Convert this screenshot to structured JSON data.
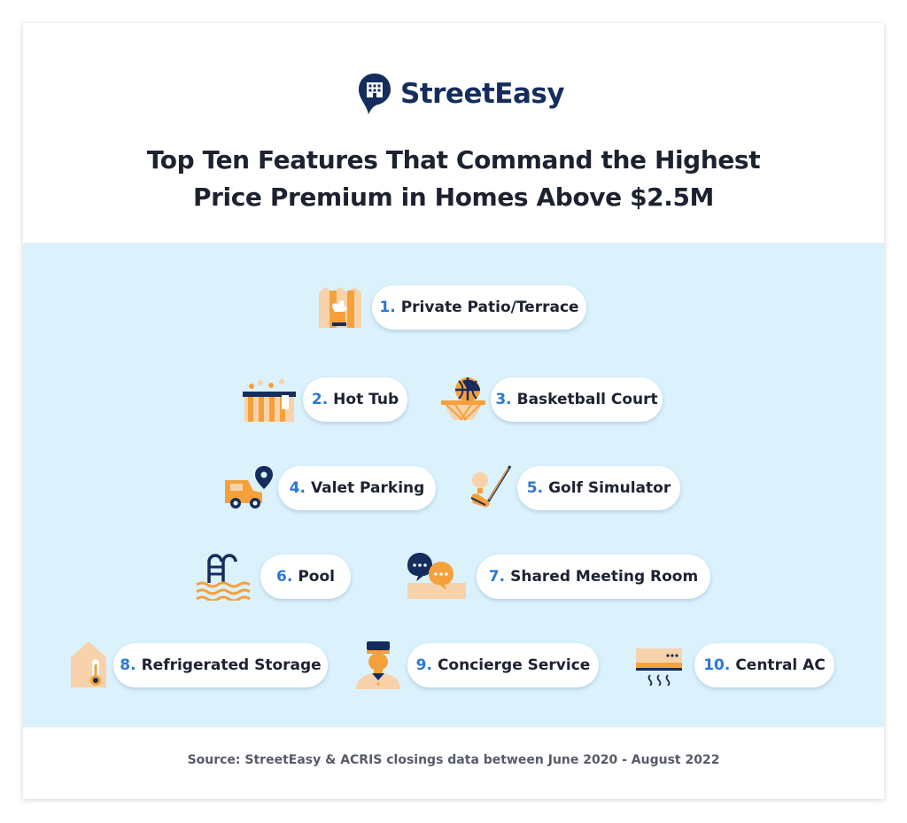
{
  "brand": {
    "name": "StreetEasy",
    "logo_icon": "building-pin-icon"
  },
  "title": {
    "line1": "Top Ten Features That Command the Highest",
    "line2": "Price Premium in Homes Above $2.5M"
  },
  "features": [
    {
      "rank": "1.",
      "label": "Private Patio/Terrace",
      "icon": "patio-plant-icon"
    },
    {
      "rank": "2.",
      "label": "Hot Tub",
      "icon": "hot-tub-icon"
    },
    {
      "rank": "3.",
      "label": "Basketball Court",
      "icon": "basketball-hoop-icon"
    },
    {
      "rank": "4.",
      "label": "Valet Parking",
      "icon": "car-location-icon"
    },
    {
      "rank": "5.",
      "label": "Golf Simulator",
      "icon": "golf-club-icon"
    },
    {
      "rank": "6.",
      "label": "Pool",
      "icon": "pool-ladder-icon"
    },
    {
      "rank": "7.",
      "label": "Shared Meeting Room",
      "icon": "chat-bubbles-icon"
    },
    {
      "rank": "8.",
      "label": "Refrigerated Storage",
      "icon": "thermometer-house-icon"
    },
    {
      "rank": "9.",
      "label": "Concierge Service",
      "icon": "concierge-icon"
    },
    {
      "rank": "10.",
      "label": "Central AC",
      "icon": "air-conditioner-icon"
    }
  ],
  "source": "Source: StreetEasy & ACRIS closings data between June 2020 - August 2022",
  "colors": {
    "navy": "#142d5c",
    "accent_blue": "#2a79d6",
    "band": "#dbf2fd",
    "orange": "#f6a03c",
    "peach": "#f7d2aa"
  }
}
